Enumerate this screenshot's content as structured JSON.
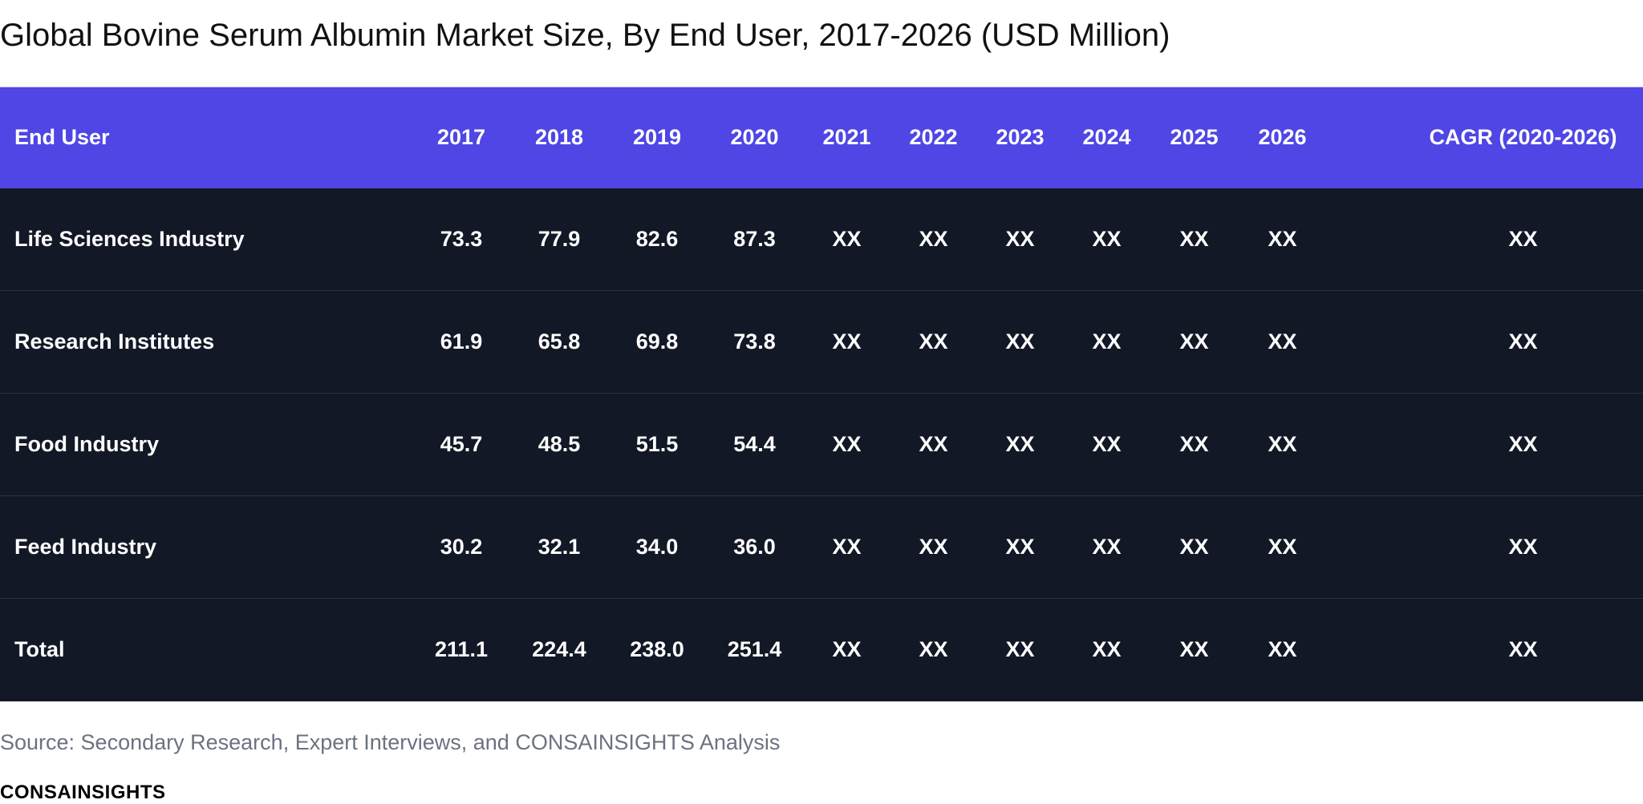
{
  "chart_data": {
    "type": "table",
    "title": "Global Bovine Serum Albumin Market Size, By End User, 2017-2026 (USD Million)",
    "columns": [
      "End User",
      "2017",
      "2018",
      "2019",
      "2020",
      "2021",
      "2022",
      "2023",
      "2024",
      "2025",
      "2026",
      "CAGR (2020-2026)"
    ],
    "rows": [
      [
        "Life Sciences Industry",
        "73.3",
        "77.9",
        "82.6",
        "87.3",
        "XX",
        "XX",
        "XX",
        "XX",
        "XX",
        "XX",
        "XX"
      ],
      [
        "Research Institutes",
        "61.9",
        "65.8",
        "69.8",
        "73.8",
        "XX",
        "XX",
        "XX",
        "XX",
        "XX",
        "XX",
        "XX"
      ],
      [
        "Food Industry",
        "45.7",
        "48.5",
        "51.5",
        "54.4",
        "XX",
        "XX",
        "XX",
        "XX",
        "XX",
        "XX",
        "XX"
      ],
      [
        "Feed Industry",
        "30.2",
        "32.1",
        "34.0",
        "36.0",
        "XX",
        "XX",
        "XX",
        "XX",
        "XX",
        "XX",
        "XX"
      ],
      [
        "Total",
        "211.1",
        "224.4",
        "238.0",
        "251.4",
        "XX",
        "XX",
        "XX",
        "XX",
        "XX",
        "XX",
        "XX"
      ]
    ],
    "header_color": "#4f46e5",
    "body_color": "#131826"
  },
  "source": "Source: Secondary Research, Expert Interviews, and CONSAINSIGHTS Analysis",
  "brand": "CONSAINSIGHTS"
}
